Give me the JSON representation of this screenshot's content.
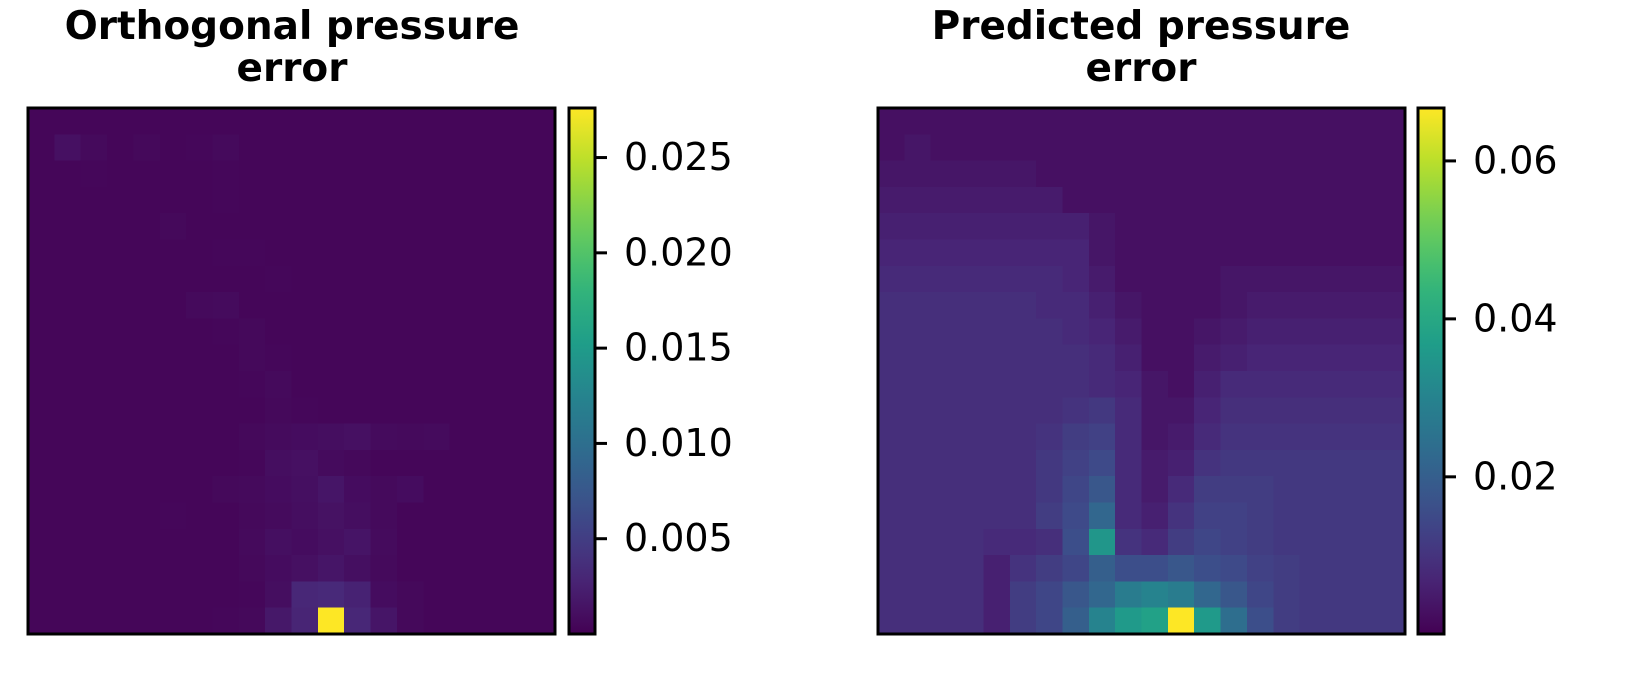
{
  "chart_data": [
    {
      "type": "heatmap",
      "title": "Orthogonal pressure error",
      "colormap": "viridis",
      "zlim": [
        0,
        0.0276
      ],
      "zticks": [
        0.005,
        {
          "value": 0.01,
          "label": "0.010"
        },
        0.015,
        {
          "value": 0.02,
          "label": "0.020"
        },
        0.025
      ],
      "z": [
        [
          0.0004,
          0.0004,
          0.0004,
          0.0004,
          0.0004,
          0.0004,
          0.0004,
          0.0004,
          0.0004,
          0.0004,
          0.0004,
          0.0004,
          0.0004,
          0.0004,
          0.0004,
          0.0004,
          0.0004,
          0.0004,
          0.0004,
          0.0004
        ],
        [
          0.0004,
          0.0012,
          0.0007,
          0.0004,
          0.0006,
          0.0004,
          0.0005,
          0.0007,
          0.0004,
          0.0004,
          0.0004,
          0.0004,
          0.0004,
          0.0004,
          0.0004,
          0.0004,
          0.0004,
          0.0004,
          0.0004,
          0.0004
        ],
        [
          0.0004,
          0.0004,
          0.0005,
          0.0004,
          0.0004,
          0.0004,
          0.0004,
          0.0005,
          0.0004,
          0.0004,
          0.0004,
          0.0004,
          0.0004,
          0.0004,
          0.0004,
          0.0004,
          0.0004,
          0.0004,
          0.0004,
          0.0004
        ],
        [
          0.0004,
          0.0004,
          0.0004,
          0.0004,
          0.0004,
          0.0004,
          0.0004,
          0.0005,
          0.0004,
          0.0004,
          0.0004,
          0.0004,
          0.0004,
          0.0004,
          0.0004,
          0.0004,
          0.0004,
          0.0004,
          0.0004,
          0.0004
        ],
        [
          0.0004,
          0.0004,
          0.0004,
          0.0004,
          0.0004,
          0.0006,
          0.0004,
          0.0004,
          0.0004,
          0.0004,
          0.0004,
          0.0004,
          0.0004,
          0.0004,
          0.0004,
          0.0004,
          0.0004,
          0.0004,
          0.0004,
          0.0004
        ],
        [
          0.0004,
          0.0004,
          0.0004,
          0.0004,
          0.0004,
          0.0004,
          0.0004,
          0.0005,
          0.0005,
          0.0004,
          0.0004,
          0.0004,
          0.0004,
          0.0004,
          0.0004,
          0.0004,
          0.0004,
          0.0004,
          0.0004,
          0.0004
        ],
        [
          0.0004,
          0.0004,
          0.0004,
          0.0004,
          0.0004,
          0.0004,
          0.0004,
          0.0004,
          0.0004,
          0.0005,
          0.0004,
          0.0004,
          0.0004,
          0.0004,
          0.0004,
          0.0004,
          0.0004,
          0.0004,
          0.0004,
          0.0004
        ],
        [
          0.0004,
          0.0004,
          0.0004,
          0.0004,
          0.0004,
          0.0004,
          0.0007,
          0.0008,
          0.0004,
          0.0004,
          0.0004,
          0.0004,
          0.0004,
          0.0004,
          0.0004,
          0.0004,
          0.0004,
          0.0004,
          0.0004,
          0.0004
        ],
        [
          0.0004,
          0.0004,
          0.0004,
          0.0004,
          0.0004,
          0.0004,
          0.0004,
          0.0005,
          0.0006,
          0.0004,
          0.0004,
          0.0004,
          0.0004,
          0.0004,
          0.0004,
          0.0004,
          0.0004,
          0.0004,
          0.0004,
          0.0004
        ],
        [
          0.0004,
          0.0004,
          0.0004,
          0.0004,
          0.0004,
          0.0004,
          0.0004,
          0.0004,
          0.0006,
          0.0005,
          0.0004,
          0.0004,
          0.0004,
          0.0004,
          0.0004,
          0.0004,
          0.0004,
          0.0004,
          0.0004,
          0.0004
        ],
        [
          0.0004,
          0.0004,
          0.0004,
          0.0004,
          0.0004,
          0.0004,
          0.0004,
          0.0004,
          0.0005,
          0.0007,
          0.0004,
          0.0004,
          0.0004,
          0.0004,
          0.0004,
          0.0004,
          0.0004,
          0.0004,
          0.0004,
          0.0004
        ],
        [
          0.0004,
          0.0004,
          0.0004,
          0.0004,
          0.0004,
          0.0004,
          0.0004,
          0.0004,
          0.0004,
          0.0006,
          0.0005,
          0.0004,
          0.0004,
          0.0004,
          0.0004,
          0.0004,
          0.0004,
          0.0004,
          0.0004,
          0.0004
        ],
        [
          0.0004,
          0.0004,
          0.0004,
          0.0004,
          0.0004,
          0.0004,
          0.0004,
          0.0004,
          0.0006,
          0.0008,
          0.0009,
          0.001,
          0.0012,
          0.0008,
          0.0007,
          0.0008,
          0.0004,
          0.0004,
          0.0004,
          0.0004
        ],
        [
          0.0004,
          0.0004,
          0.0004,
          0.0004,
          0.0004,
          0.0004,
          0.0004,
          0.0004,
          0.0005,
          0.001,
          0.0012,
          0.0008,
          0.0006,
          0.0004,
          0.0004,
          0.0004,
          0.0004,
          0.0004,
          0.0004,
          0.0004
        ],
        [
          0.0004,
          0.0004,
          0.0004,
          0.0004,
          0.0004,
          0.0004,
          0.0004,
          0.0006,
          0.0007,
          0.0009,
          0.0011,
          0.0016,
          0.0009,
          0.0007,
          0.0009,
          0.0004,
          0.0004,
          0.0004,
          0.0004,
          0.0004
        ],
        [
          0.0004,
          0.0004,
          0.0004,
          0.0004,
          0.0004,
          0.0005,
          0.0004,
          0.0004,
          0.0006,
          0.0008,
          0.001,
          0.0013,
          0.001,
          0.0007,
          0.0004,
          0.0004,
          0.0004,
          0.0004,
          0.0004,
          0.0004
        ],
        [
          0.0004,
          0.0004,
          0.0004,
          0.0004,
          0.0004,
          0.0004,
          0.0004,
          0.0004,
          0.0007,
          0.0011,
          0.0009,
          0.0012,
          0.0015,
          0.0008,
          0.0004,
          0.0004,
          0.0004,
          0.0004,
          0.0004,
          0.0004
        ],
        [
          0.0004,
          0.0004,
          0.0004,
          0.0004,
          0.0004,
          0.0004,
          0.0004,
          0.0004,
          0.0006,
          0.0009,
          0.0012,
          0.0016,
          0.0011,
          0.0007,
          0.0004,
          0.0004,
          0.0004,
          0.0004,
          0.0004,
          0.0004
        ],
        [
          0.0004,
          0.0004,
          0.0004,
          0.0004,
          0.0004,
          0.0004,
          0.0004,
          0.0004,
          0.0005,
          0.001,
          0.003,
          0.0032,
          0.0026,
          0.0009,
          0.0006,
          0.0004,
          0.0004,
          0.0004,
          0.0004,
          0.0004
        ],
        [
          0.0004,
          0.0004,
          0.0004,
          0.0004,
          0.0004,
          0.0004,
          0.0004,
          0.0005,
          0.0006,
          0.0018,
          0.0028,
          0.0276,
          0.003,
          0.0016,
          0.0006,
          0.0004,
          0.0004,
          0.0004,
          0.0004,
          0.0004
        ]
      ]
    },
    {
      "type": "heatmap",
      "title": "Predicted pressure error",
      "colormap": "viridis",
      "zlim": [
        0.0001,
        0.0667
      ],
      "zticks": [
        0.02,
        0.04,
        0.06
      ],
      "z": [
        [
          0.003,
          0.003,
          0.003,
          0.003,
          0.003,
          0.003,
          0.003,
          0.003,
          0.003,
          0.003,
          0.003,
          0.003,
          0.003,
          0.003,
          0.003,
          0.003,
          0.003,
          0.003,
          0.003,
          0.003
        ],
        [
          0.003,
          0.004,
          0.003,
          0.003,
          0.003,
          0.003,
          0.003,
          0.003,
          0.003,
          0.003,
          0.003,
          0.003,
          0.003,
          0.003,
          0.003,
          0.003,
          0.003,
          0.003,
          0.003,
          0.003
        ],
        [
          0.004,
          0.004,
          0.004,
          0.004,
          0.004,
          0.004,
          0.003,
          0.003,
          0.003,
          0.003,
          0.003,
          0.003,
          0.003,
          0.003,
          0.003,
          0.003,
          0.003,
          0.003,
          0.003,
          0.003
        ],
        [
          0.005,
          0.005,
          0.005,
          0.005,
          0.005,
          0.005,
          0.005,
          0.003,
          0.003,
          0.003,
          0.003,
          0.003,
          0.003,
          0.003,
          0.003,
          0.003,
          0.003,
          0.003,
          0.003,
          0.003
        ],
        [
          0.006,
          0.006,
          0.006,
          0.006,
          0.006,
          0.006,
          0.006,
          0.006,
          0.004,
          0.003,
          0.003,
          0.003,
          0.003,
          0.003,
          0.003,
          0.003,
          0.003,
          0.003,
          0.003,
          0.003
        ],
        [
          0.007,
          0.007,
          0.007,
          0.007,
          0.007,
          0.007,
          0.007,
          0.007,
          0.004,
          0.003,
          0.003,
          0.003,
          0.003,
          0.003,
          0.003,
          0.003,
          0.003,
          0.003,
          0.003,
          0.003
        ],
        [
          0.008,
          0.008,
          0.008,
          0.008,
          0.008,
          0.008,
          0.008,
          0.007,
          0.005,
          0.003,
          0.003,
          0.003,
          0.003,
          0.004,
          0.004,
          0.004,
          0.004,
          0.004,
          0.004,
          0.004
        ],
        [
          0.009,
          0.009,
          0.009,
          0.009,
          0.009,
          0.009,
          0.008,
          0.008,
          0.006,
          0.004,
          0.003,
          0.003,
          0.003,
          0.004,
          0.005,
          0.005,
          0.005,
          0.005,
          0.005,
          0.005
        ],
        [
          0.009,
          0.009,
          0.009,
          0.009,
          0.009,
          0.009,
          0.009,
          0.008,
          0.007,
          0.005,
          0.003,
          0.003,
          0.004,
          0.005,
          0.006,
          0.006,
          0.006,
          0.006,
          0.006,
          0.006
        ],
        [
          0.009,
          0.009,
          0.009,
          0.009,
          0.009,
          0.009,
          0.009,
          0.009,
          0.008,
          0.006,
          0.003,
          0.003,
          0.005,
          0.006,
          0.007,
          0.007,
          0.007,
          0.007,
          0.007,
          0.007
        ],
        [
          0.009,
          0.009,
          0.009,
          0.009,
          0.009,
          0.009,
          0.009,
          0.009,
          0.008,
          0.007,
          0.004,
          0.003,
          0.006,
          0.008,
          0.008,
          0.008,
          0.008,
          0.008,
          0.008,
          0.008
        ],
        [
          0.009,
          0.009,
          0.009,
          0.009,
          0.009,
          0.009,
          0.009,
          0.01,
          0.011,
          0.008,
          0.004,
          0.004,
          0.007,
          0.009,
          0.009,
          0.009,
          0.009,
          0.009,
          0.009,
          0.009
        ],
        [
          0.009,
          0.009,
          0.009,
          0.009,
          0.009,
          0.009,
          0.01,
          0.012,
          0.013,
          0.008,
          0.004,
          0.005,
          0.008,
          0.01,
          0.01,
          0.01,
          0.01,
          0.01,
          0.01,
          0.01
        ],
        [
          0.009,
          0.009,
          0.009,
          0.009,
          0.009,
          0.009,
          0.011,
          0.013,
          0.015,
          0.008,
          0.005,
          0.006,
          0.01,
          0.011,
          0.011,
          0.011,
          0.011,
          0.011,
          0.011,
          0.011
        ],
        [
          0.009,
          0.009,
          0.009,
          0.009,
          0.009,
          0.009,
          0.011,
          0.014,
          0.018,
          0.008,
          0.005,
          0.008,
          0.012,
          0.012,
          0.012,
          0.011,
          0.011,
          0.011,
          0.011,
          0.011
        ],
        [
          0.009,
          0.009,
          0.009,
          0.009,
          0.009,
          0.009,
          0.012,
          0.015,
          0.022,
          0.008,
          0.006,
          0.01,
          0.013,
          0.013,
          0.012,
          0.011,
          0.011,
          0.011,
          0.011,
          0.011
        ],
        [
          0.009,
          0.009,
          0.009,
          0.009,
          0.008,
          0.008,
          0.009,
          0.016,
          0.035,
          0.01,
          0.008,
          0.012,
          0.014,
          0.013,
          0.012,
          0.011,
          0.011,
          0.011,
          0.011,
          0.011
        ],
        [
          0.009,
          0.009,
          0.009,
          0.009,
          0.006,
          0.01,
          0.012,
          0.014,
          0.02,
          0.016,
          0.016,
          0.018,
          0.016,
          0.015,
          0.013,
          0.012,
          0.011,
          0.011,
          0.011,
          0.011
        ],
        [
          0.009,
          0.009,
          0.009,
          0.009,
          0.006,
          0.012,
          0.014,
          0.018,
          0.022,
          0.028,
          0.03,
          0.028,
          0.022,
          0.018,
          0.014,
          0.012,
          0.011,
          0.011,
          0.011,
          0.011
        ],
        [
          0.009,
          0.009,
          0.009,
          0.009,
          0.006,
          0.012,
          0.014,
          0.02,
          0.03,
          0.036,
          0.038,
          0.0667,
          0.036,
          0.024,
          0.016,
          0.012,
          0.011,
          0.011,
          0.011,
          0.011
        ]
      ]
    }
  ]
}
